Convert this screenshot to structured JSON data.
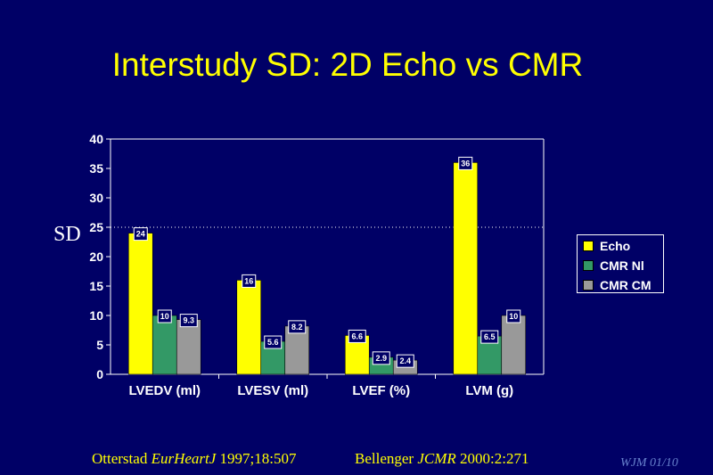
{
  "title": "Interstudy SD: 2D Echo vs CMR",
  "ylabel": "SD",
  "footer": {
    "left_author": "Otterstad ",
    "left_journal": "EurHeartJ",
    "left_ref": " 1997;18:507",
    "right_author": "Bellenger ",
    "right_journal": "JCMR",
    "right_ref": " 2000:2:271"
  },
  "initials": "WJM 01/10",
  "colors": {
    "background": "#000066",
    "title": "#ffff00",
    "Echo": "#ffff00",
    "CMR Nl": "#339966",
    "CMR CM": "#999999"
  },
  "chart_data": {
    "type": "bar",
    "categories": [
      "LVEDV (ml)",
      "LVESV (ml)",
      "LVEF (%)",
      "LVM (g)"
    ],
    "series": [
      {
        "name": "Echo",
        "values": [
          24,
          16,
          6.6,
          36
        ],
        "labels": [
          "24",
          "16",
          "6.6",
          "36"
        ]
      },
      {
        "name": "CMR Nl",
        "values": [
          10,
          5.6,
          2.9,
          6.5
        ],
        "labels": [
          "10",
          "5.6",
          "2.9",
          "6.5"
        ]
      },
      {
        "name": "CMR CM",
        "values": [
          9.3,
          8.2,
          2.4,
          10
        ],
        "labels": [
          "9.3",
          "8.2",
          "2.4",
          "10"
        ]
      }
    ],
    "ylim": [
      0,
      40
    ],
    "yticks": [
      "0",
      "5",
      "10",
      "15",
      "20",
      "25",
      "30",
      "35",
      "40"
    ],
    "reference_line": 25,
    "grid": false,
    "legend": "right"
  }
}
